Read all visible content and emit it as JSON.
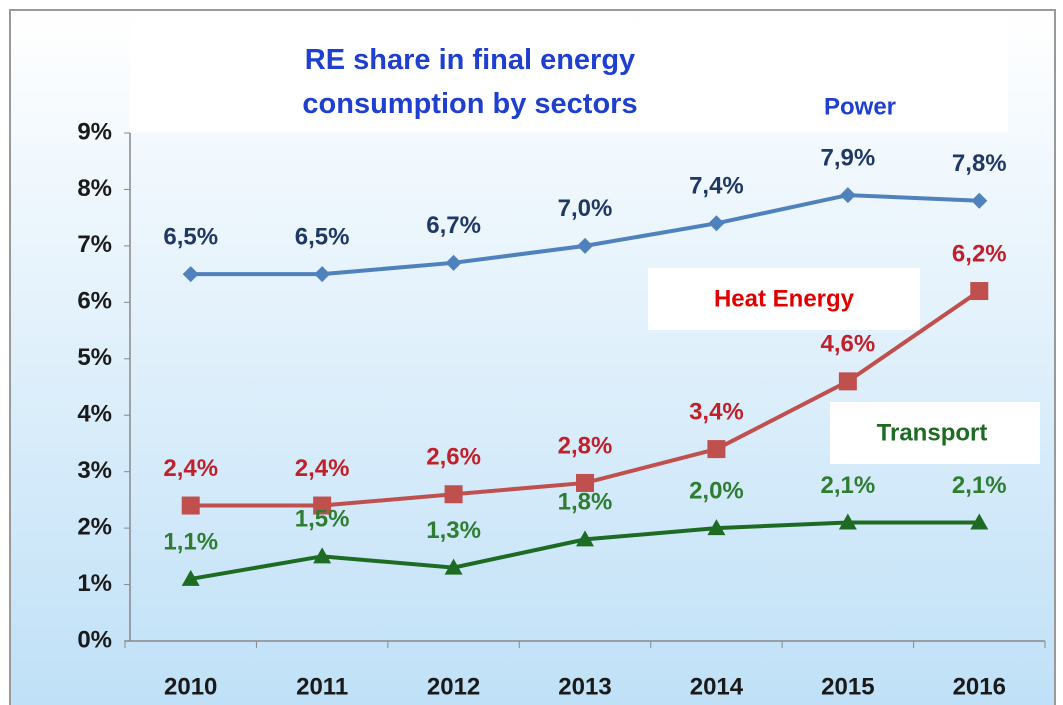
{
  "chart_data": {
    "type": "line",
    "title": "RE share in final energy consumption by sectors",
    "categories": [
      "2010",
      "2011",
      "2012",
      "2013",
      "2014",
      "2015",
      "2016"
    ],
    "series": [
      {
        "name": "Power",
        "color": "#4f81bd",
        "label_color": "#1f3864",
        "marker": "diamond",
        "values": [
          6.5,
          6.5,
          6.7,
          7.0,
          7.4,
          7.9,
          7.8
        ],
        "value_labels": [
          "6,5%",
          "6,5%",
          "6,7%",
          "7,0%",
          "7,4%",
          "7,9%",
          "7,8%"
        ]
      },
      {
        "name": "Heat Energy",
        "color": "#c0504d",
        "label_color": "#c0202a",
        "marker": "square",
        "values": [
          2.4,
          2.4,
          2.6,
          2.8,
          3.4,
          4.6,
          6.2
        ],
        "value_labels": [
          "2,4%",
          "2,4%",
          "2,6%",
          "2,8%",
          "3,4%",
          "4,6%",
          "6,2%"
        ]
      },
      {
        "name": "Transport",
        "color": "#1e6b23",
        "label_color": "#2e7d32",
        "marker": "triangle",
        "values": [
          1.1,
          1.5,
          1.3,
          1.8,
          2.0,
          2.1,
          2.1
        ],
        "value_labels": [
          "1,1%",
          "1,5%",
          "1,3%",
          "1,8%",
          "2,0%",
          "2,1%",
          "2,1%"
        ]
      }
    ],
    "ylim": [
      0,
      9
    ],
    "yticks": [
      {
        "value": 0,
        "label": "0%"
      },
      {
        "value": 1,
        "label": "1%"
      },
      {
        "value": 2,
        "label": "2%"
      },
      {
        "value": 3,
        "label": "3%"
      },
      {
        "value": 4,
        "label": "4%"
      },
      {
        "value": 5,
        "label": "5%"
      },
      {
        "value": 6,
        "label": "6%"
      },
      {
        "value": 7,
        "label": "7%"
      },
      {
        "value": 8,
        "label": "8%"
      },
      {
        "value": 9,
        "label": "9%"
      }
    ],
    "grid": false
  }
}
